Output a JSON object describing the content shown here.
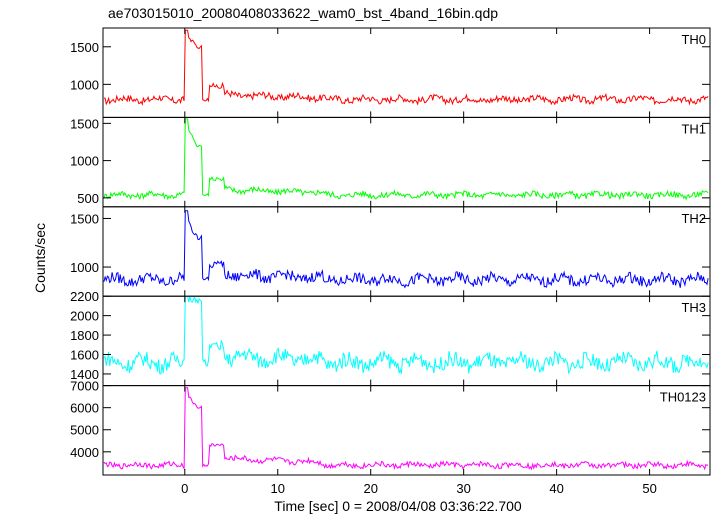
{
  "chart_data": {
    "type": "line",
    "title": "ae703015010_20080408033622_wam0_bst_4band_16bin.qdp",
    "xlabel": "Time [sec] 0 = 2008/04/08 03:36:22.700",
    "ylabel": "Counts/sec",
    "x_ticks": [
      0,
      10,
      20,
      30,
      40,
      50
    ],
    "xlim": [
      -8.8,
      56.5
    ],
    "panels": [
      {
        "name": "TH0",
        "color": "#ff0000",
        "ylim": [
          560,
          1750
        ],
        "y_ticks": [
          1000,
          1500
        ],
        "y_tick_labels": [
          "1000",
          "1500"
        ],
        "baseline": 800,
        "noise": 45,
        "peak": 1720,
        "plateau": 1500,
        "bump": 980
      },
      {
        "name": "TH1",
        "color": "#00ff00",
        "ylim": [
          380,
          1580
        ],
        "y_ticks": [
          500,
          1000,
          1500
        ],
        "y_tick_labels": [
          "500",
          "1000",
          "1500"
        ],
        "baseline": 540,
        "noise": 40,
        "peak": 1560,
        "plateau": 1200,
        "bump": 760
      },
      {
        "name": "TH2",
        "color": "#0000ff",
        "ylim": [
          700,
          1620
        ],
        "y_ticks": [
          1000,
          1500
        ],
        "y_tick_labels": [
          "1000",
          "1500"
        ],
        "baseline": 870,
        "noise": 55,
        "peak": 1580,
        "plateau": 1300,
        "bump": 1020
      },
      {
        "name": "TH3",
        "color": "#00ffff",
        "ylim": [
          1280,
          2200
        ],
        "y_ticks": [
          1400,
          1600,
          1800,
          2000,
          2200
        ],
        "y_tick_labels": [
          "1400",
          "1600",
          "1800",
          "2000",
          "2200"
        ],
        "baseline": 1520,
        "noise": 80,
        "peak": 2200,
        "plateau": 2150,
        "bump": 1700
      },
      {
        "name": "TH0123",
        "color": "#ff00ff",
        "ylim": [
          2950,
          7000
        ],
        "y_ticks": [
          4000,
          5000,
          6000,
          7000
        ],
        "y_tick_labels": [
          "4000",
          "5000",
          "6000",
          "7000"
        ],
        "baseline": 3400,
        "noise": 120,
        "peak": 6900,
        "plateau": 6000,
        "bump": 4300
      }
    ]
  }
}
